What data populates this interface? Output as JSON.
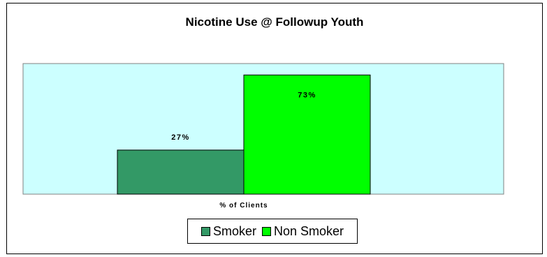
{
  "chart_data": {
    "type": "bar",
    "title": "Nicotine Use @ Followup Youth",
    "categories": [
      "% of Clients"
    ],
    "xlabel": "",
    "ylabel": "",
    "ylim": [
      0,
      80
    ],
    "grid": false,
    "legend_position": "bottom",
    "plot_background": "#ccffff",
    "series": [
      {
        "name": "Smoker",
        "values": [
          27
        ],
        "label": "27%",
        "color": "#339966"
      },
      {
        "name": "Non Smoker",
        "values": [
          73
        ],
        "label": "73%",
        "color": "#00ff00"
      }
    ]
  }
}
